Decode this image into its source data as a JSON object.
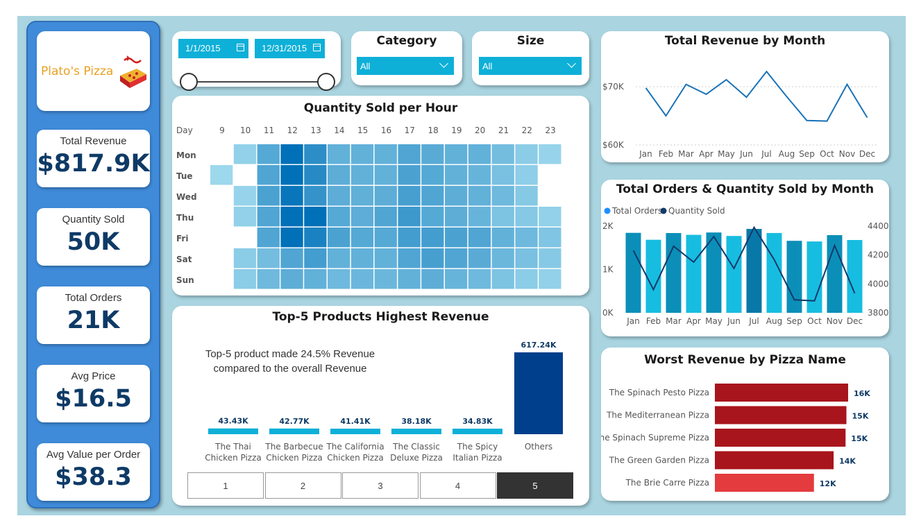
{
  "brand": {
    "name": "Plato's Pizza"
  },
  "kpis": [
    {
      "label": "Total Revenue",
      "value": "$817.9K"
    },
    {
      "label": "Quantity Sold",
      "value": "50K"
    },
    {
      "label": "Total Orders",
      "value": "21K"
    },
    {
      "label": "Avg Price",
      "value": "$16.5"
    },
    {
      "label": "Avg Value per Order",
      "value": "$38.3"
    }
  ],
  "filters": {
    "date_start": "1/1/2015",
    "date_end": "12/31/2015",
    "category_label": "Category",
    "category_value": "All",
    "size_label": "Size",
    "size_value": "All"
  },
  "colors": {
    "accent": "#0eb0d8",
    "kpi_text": "#0e3a66",
    "line": "#1a73b8",
    "bar_dark": "#0b8fb8",
    "bar_light": "#17bde0",
    "worst": "#a8151c",
    "worst_light": "#e33b3e",
    "others_bar": "#003f8c"
  },
  "chart_data": [
    {
      "type": "line",
      "title": "Total Revenue by Month",
      "categories": [
        "Jan",
        "Feb",
        "Mar",
        "Apr",
        "May",
        "Jun",
        "Jul",
        "Aug",
        "Sep",
        "Oct",
        "Nov",
        "Dec"
      ],
      "values": [
        69800,
        65000,
        70400,
        68700,
        71200,
        68200,
        72600,
        68300,
        64200,
        64100,
        70400,
        64700
      ],
      "yticks": [
        "$60K",
        "$70K"
      ],
      "ylim": [
        60000,
        70000
      ]
    },
    {
      "type": "bar",
      "title": "Total Orders & Quantity Sold by Month",
      "categories": [
        "Jan",
        "Feb",
        "Mar",
        "Apr",
        "May",
        "Jun",
        "Jul",
        "Aug",
        "Sep",
        "Oct",
        "Nov",
        "Dec"
      ],
      "legend": [
        "Total Orders",
        "Quantity Sold"
      ],
      "series": [
        {
          "name": "Total Orders",
          "values": [
            1845,
            1685,
            1840,
            1799,
            1853,
            1773,
            1935,
            1841,
            1661,
            1646,
            1792,
            1680
          ]
        },
        {
          "name": "Quantity Sold",
          "values": [
            4232,
            3961,
            4261,
            4151,
            4328,
            4107,
            4392,
            4168,
            3890,
            3883,
            4266,
            3935
          ]
        }
      ],
      "y_left_ticks": [
        "0K",
        "1K",
        "2K"
      ],
      "y_left_lim": [
        0,
        2000
      ],
      "y_right_ticks": [
        "3800",
        "4000",
        "4200",
        "4400"
      ],
      "y_right_lim": [
        3800,
        4400
      ]
    },
    {
      "type": "heatmap",
      "title": "Quantity Sold per Hour",
      "corner_label": "Day",
      "hours": [
        "9",
        "10",
        "11",
        "12",
        "13",
        "14",
        "15",
        "16",
        "17",
        "18",
        "19",
        "20",
        "21",
        "22",
        "23"
      ],
      "days": [
        "Mon",
        "Tue",
        "Wed",
        "Thu",
        "Fri",
        "Sat",
        "Sun"
      ],
      "values": [
        [
          0,
          18,
          52,
          100,
          75,
          45,
          45,
          45,
          55,
          50,
          45,
          45,
          35,
          22,
          15
        ],
        [
          12,
          0,
          55,
          100,
          78,
          48,
          45,
          45,
          58,
          52,
          45,
          42,
          32,
          20,
          0
        ],
        [
          0,
          15,
          58,
          95,
          70,
          48,
          46,
          48,
          60,
          55,
          48,
          45,
          38,
          25,
          0
        ],
        [
          0,
          18,
          55,
          100,
          100,
          52,
          48,
          55,
          66,
          52,
          48,
          42,
          30,
          25,
          18
        ],
        [
          0,
          0,
          55,
          100,
          85,
          58,
          52,
          52,
          62,
          62,
          58,
          55,
          45,
          38,
          28
        ],
        [
          0,
          22,
          35,
          55,
          62,
          45,
          45,
          45,
          55,
          60,
          55,
          50,
          40,
          32,
          25
        ],
        [
          0,
          22,
          38,
          48,
          45,
          38,
          40,
          40,
          45,
          48,
          42,
          38,
          30,
          22,
          18
        ]
      ]
    },
    {
      "type": "bar",
      "title": "Top-5 Products Highest Revenue",
      "annotation_line1": "Top-5 product made 24.5% Revenue",
      "annotation_line2": "compared to the overall Revenue",
      "categories": [
        [
          "The Thai",
          "Chicken Pizza"
        ],
        [
          "The Barbecue",
          "Chicken Pizza"
        ],
        [
          "The California",
          "Chicken Pizza"
        ],
        [
          "The Classic",
          "Deluxe Pizza"
        ],
        [
          "The Spicy",
          "Italian Pizza"
        ],
        [
          "Others",
          ""
        ]
      ],
      "values": [
        43.43,
        42.77,
        41.41,
        38.18,
        34.83,
        617.24
      ],
      "labels": [
        "43.43K",
        "42.77K",
        "41.41K",
        "38.18K",
        "34.83K",
        "617.24K"
      ],
      "pager": [
        "1",
        "2",
        "3",
        "4",
        "5"
      ],
      "pager_selected": 4
    },
    {
      "type": "bar",
      "orientation": "horizontal",
      "title": "Worst Revenue by Pizza Name",
      "categories": [
        "The Spinach Pesto Pizza",
        "The Mediterranean Pizza",
        "The Spinach Supreme Pizza",
        "The Green Garden Pizza",
        "The Brie Carre Pizza"
      ],
      "values": [
        15.6,
        15.4,
        15.3,
        13.9,
        11.6
      ],
      "labels": [
        "16K",
        "15K",
        "15K",
        "14K",
        "12K"
      ]
    }
  ]
}
